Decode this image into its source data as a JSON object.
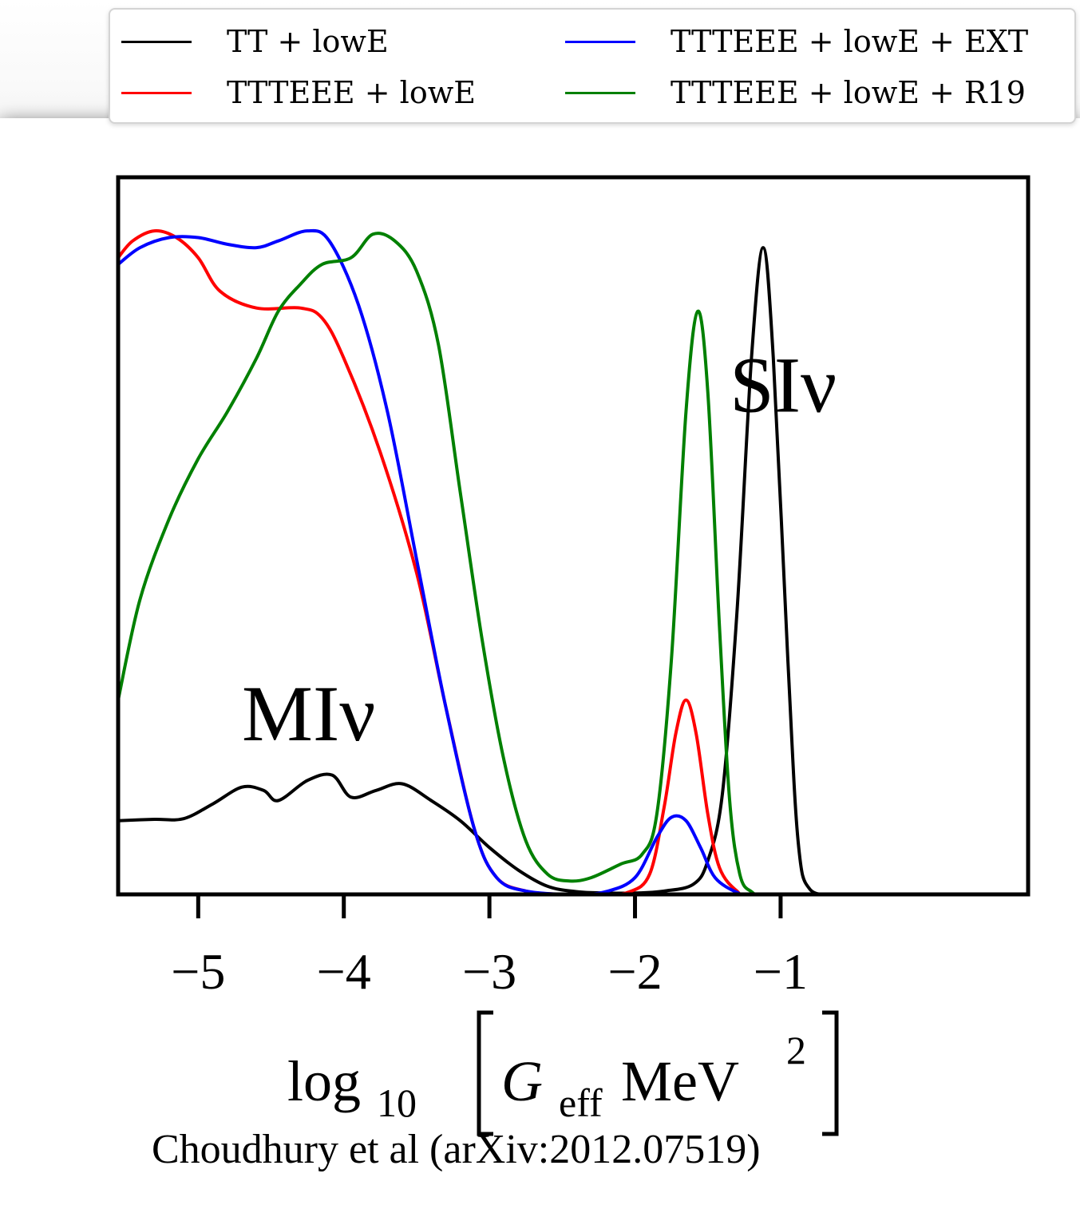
{
  "chart_data": {
    "type": "line",
    "xlabel_parts": {
      "prefix": "log",
      "sub": "10",
      "g": "G",
      "g_sub": "eff",
      "unit": "MeV",
      "sup": "2"
    },
    "ylabel": "",
    "xlim": [
      -5.55,
      0.7
    ],
    "ylim": [
      0,
      1.07
    ],
    "x_ticks": [
      -5,
      -4,
      -3,
      -2,
      -1
    ],
    "x_tick_labels": [
      "−5",
      "−4",
      "−3",
      "−2",
      "−1"
    ],
    "legend_position": "top (outside)",
    "annotations": [
      {
        "text": "MIν",
        "x": -4.7,
        "y": 0.23
      },
      {
        "text": "SIν",
        "x": -1.35,
        "y": 0.72
      }
    ],
    "series": [
      {
        "name": "TT + lowE",
        "color": "#000000",
        "points": [
          [
            -5.55,
            0.11
          ],
          [
            -5.3,
            0.112
          ],
          [
            -5.1,
            0.113
          ],
          [
            -4.9,
            0.135
          ],
          [
            -4.7,
            0.16
          ],
          [
            -4.55,
            0.155
          ],
          [
            -4.45,
            0.14
          ],
          [
            -4.25,
            0.17
          ],
          [
            -4.08,
            0.178
          ],
          [
            -3.95,
            0.145
          ],
          [
            -3.78,
            0.155
          ],
          [
            -3.6,
            0.165
          ],
          [
            -3.4,
            0.14
          ],
          [
            -3.2,
            0.11
          ],
          [
            -3.0,
            0.07
          ],
          [
            -2.8,
            0.036
          ],
          [
            -2.6,
            0.012
          ],
          [
            -2.4,
            0.004
          ],
          [
            -2.2,
            0.002
          ],
          [
            -2.0,
            0.002
          ],
          [
            -1.8,
            0.005
          ],
          [
            -1.6,
            0.015
          ],
          [
            -1.5,
            0.05
          ],
          [
            -1.4,
            0.15
          ],
          [
            -1.3,
            0.42
          ],
          [
            -1.2,
            0.8
          ],
          [
            -1.12,
            0.965
          ],
          [
            -1.05,
            0.8
          ],
          [
            -0.95,
            0.35
          ],
          [
            -0.88,
            0.08
          ],
          [
            -0.8,
            0.008
          ],
          [
            -0.6,
            0.0
          ]
        ]
      },
      {
        "name": "TTTEEE + lowE",
        "color": "#ff0000",
        "points": [
          [
            -5.55,
            0.95
          ],
          [
            -5.45,
            0.975
          ],
          [
            -5.3,
            0.99
          ],
          [
            -5.15,
            0.98
          ],
          [
            -5.0,
            0.95
          ],
          [
            -4.85,
            0.9
          ],
          [
            -4.6,
            0.875
          ],
          [
            -4.3,
            0.875
          ],
          [
            -4.15,
            0.86
          ],
          [
            -4.0,
            0.8
          ],
          [
            -3.75,
            0.66
          ],
          [
            -3.5,
            0.48
          ],
          [
            -3.3,
            0.28
          ],
          [
            -3.1,
            0.095
          ],
          [
            -2.95,
            0.025
          ],
          [
            -2.75,
            0.005
          ],
          [
            -2.5,
            0.0
          ],
          [
            -2.25,
            0.0
          ],
          [
            -2.05,
            0.003
          ],
          [
            -1.9,
            0.03
          ],
          [
            -1.8,
            0.13
          ],
          [
            -1.72,
            0.24
          ],
          [
            -1.65,
            0.29
          ],
          [
            -1.58,
            0.24
          ],
          [
            -1.5,
            0.12
          ],
          [
            -1.42,
            0.04
          ],
          [
            -1.3,
            0.005
          ],
          [
            -1.2,
            0.0
          ],
          [
            -0.6,
            0.0
          ]
        ]
      },
      {
        "name": "TTTEEE + lowE + EXT",
        "color": "#0000ff",
        "points": [
          [
            -5.55,
            0.94
          ],
          [
            -5.4,
            0.965
          ],
          [
            -5.2,
            0.98
          ],
          [
            -5.0,
            0.98
          ],
          [
            -4.8,
            0.97
          ],
          [
            -4.6,
            0.965
          ],
          [
            -4.45,
            0.975
          ],
          [
            -4.25,
            0.99
          ],
          [
            -4.1,
            0.975
          ],
          [
            -3.9,
            0.88
          ],
          [
            -3.7,
            0.72
          ],
          [
            -3.5,
            0.5
          ],
          [
            -3.3,
            0.28
          ],
          [
            -3.1,
            0.095
          ],
          [
            -2.95,
            0.025
          ],
          [
            -2.75,
            0.005
          ],
          [
            -2.4,
            0.0
          ],
          [
            -2.2,
            0.004
          ],
          [
            -2.0,
            0.025
          ],
          [
            -1.85,
            0.085
          ],
          [
            -1.75,
            0.115
          ],
          [
            -1.65,
            0.11
          ],
          [
            -1.55,
            0.07
          ],
          [
            -1.45,
            0.025
          ],
          [
            -1.3,
            0.003
          ],
          [
            -1.2,
            0.0
          ],
          [
            -0.6,
            0.0
          ]
        ]
      },
      {
        "name": "TTTEEE + lowE + R19",
        "color": "#008000",
        "points": [
          [
            -5.55,
            0.29
          ],
          [
            -5.4,
            0.44
          ],
          [
            -5.2,
            0.56
          ],
          [
            -5.0,
            0.65
          ],
          [
            -4.8,
            0.72
          ],
          [
            -4.6,
            0.8
          ],
          [
            -4.45,
            0.87
          ],
          [
            -4.3,
            0.91
          ],
          [
            -4.15,
            0.94
          ],
          [
            -3.95,
            0.95
          ],
          [
            -3.8,
            0.985
          ],
          [
            -3.65,
            0.975
          ],
          [
            -3.5,
            0.93
          ],
          [
            -3.35,
            0.82
          ],
          [
            -3.2,
            0.6
          ],
          [
            -3.05,
            0.38
          ],
          [
            -2.9,
            0.2
          ],
          [
            -2.75,
            0.08
          ],
          [
            -2.6,
            0.03
          ],
          [
            -2.45,
            0.02
          ],
          [
            -2.3,
            0.025
          ],
          [
            -2.1,
            0.045
          ],
          [
            -1.95,
            0.06
          ],
          [
            -1.85,
            0.12
          ],
          [
            -1.75,
            0.35
          ],
          [
            -1.65,
            0.72
          ],
          [
            -1.57,
            0.87
          ],
          [
            -1.5,
            0.75
          ],
          [
            -1.42,
            0.4
          ],
          [
            -1.35,
            0.14
          ],
          [
            -1.28,
            0.03
          ],
          [
            -1.2,
            0.004
          ],
          [
            -1.1,
            0.0
          ],
          [
            -0.6,
            0.0
          ]
        ]
      }
    ]
  },
  "credit": "Choudhury et al (arXiv:2012.07519)"
}
